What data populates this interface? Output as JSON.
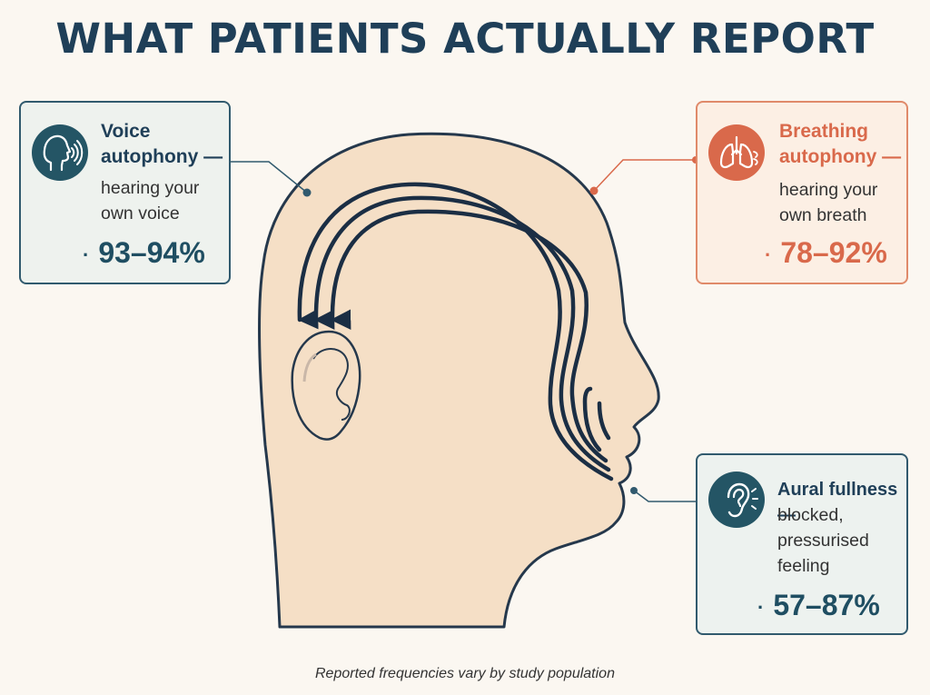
{
  "title": "WHAT PATIENTS ACTUALLY REPORT",
  "cards": {
    "voice": {
      "title": "Voice autophony —",
      "description": "hearing your own voice",
      "value": "93–94%",
      "icon": "speaking-head-icon",
      "color": "#245565"
    },
    "breathing": {
      "title": "Breathing autophony —",
      "description": "hearing your own breath",
      "value": "78–92%",
      "icon": "lungs-icon",
      "color": "#d9694b"
    },
    "aural": {
      "title": "Aural fullness —",
      "description": "blocked, pressurised feeling",
      "value": "57–87%",
      "icon": "ear-sound-icon",
      "color": "#245565"
    }
  },
  "footnote": "Reported frequencies vary by study population"
}
